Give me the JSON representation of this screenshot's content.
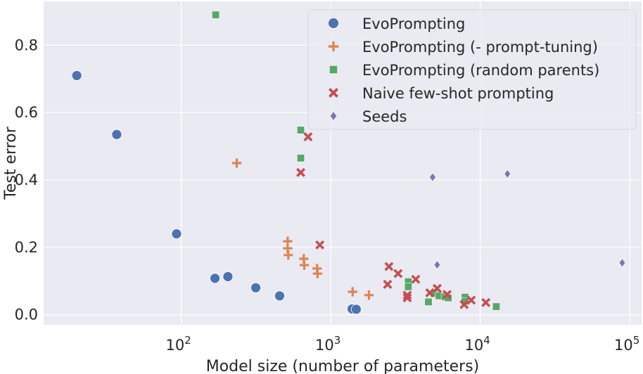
{
  "chart_data": {
    "type": "scatter",
    "xlabel": "Model size (number of parameters)",
    "ylabel": "Test error",
    "xscale": "log",
    "xlim": [
      12,
      120000
    ],
    "ylim": [
      -0.03,
      0.93
    ],
    "x_ticks": [
      {
        "value": 100,
        "base": "10",
        "exp": "2"
      },
      {
        "value": 1000,
        "base": "10",
        "exp": "3"
      },
      {
        "value": 10000,
        "base": "10",
        "exp": "4"
      },
      {
        "value": 100000,
        "base": "10",
        "exp": "5"
      }
    ],
    "y_ticks": [
      {
        "value": 0.0,
        "label": "0.0"
      },
      {
        "value": 0.2,
        "label": "0.2"
      },
      {
        "value": 0.4,
        "label": "0.4"
      },
      {
        "value": 0.6,
        "label": "0.6"
      },
      {
        "value": 0.8,
        "label": "0.8"
      }
    ],
    "grid": true,
    "legend_position": "top-right",
    "background": "#eaeaf2",
    "series": [
      {
        "name": "EvoPrompting",
        "marker": "circle",
        "color": "#4c72b0",
        "points": [
          [
            20,
            0.71
          ],
          [
            37,
            0.535
          ],
          [
            93,
            0.24
          ],
          [
            168,
            0.108
          ],
          [
            205,
            0.113
          ],
          [
            315,
            0.08
          ],
          [
            455,
            0.056
          ],
          [
            1390,
            0.017
          ],
          [
            1480,
            0.016
          ]
        ]
      },
      {
        "name": "EvoPrompting (- prompt-tuning)",
        "marker": "plus",
        "color": "#dd8452",
        "points": [
          [
            235,
            0.45
          ],
          [
            515,
            0.218
          ],
          [
            515,
            0.197
          ],
          [
            520,
            0.177
          ],
          [
            660,
            0.166
          ],
          [
            665,
            0.147
          ],
          [
            810,
            0.137
          ],
          [
            815,
            0.122
          ],
          [
            1400,
            0.068
          ],
          [
            1800,
            0.058
          ]
        ]
      },
      {
        "name": "EvoPrompting (random parents)",
        "marker": "square",
        "color": "#55a868",
        "points": [
          [
            170,
            0.89
          ],
          [
            630,
            0.548
          ],
          [
            630,
            0.465
          ],
          [
            3300,
            0.098
          ],
          [
            3300,
            0.083
          ],
          [
            4500,
            0.038
          ],
          [
            4900,
            0.063
          ],
          [
            5300,
            0.056
          ],
          [
            5800,
            0.053
          ],
          [
            6100,
            0.05
          ],
          [
            7900,
            0.052
          ],
          [
            7900,
            0.04
          ],
          [
            12800,
            0.024
          ]
        ]
      },
      {
        "name": "Naive few-shot prompting",
        "marker": "x",
        "color": "#c44e52",
        "points": [
          [
            705,
            0.528
          ],
          [
            630,
            0.422
          ],
          [
            845,
            0.207
          ],
          [
            2450,
            0.143
          ],
          [
            2820,
            0.122
          ],
          [
            2400,
            0.09
          ],
          [
            3700,
            0.105
          ],
          [
            3250,
            0.058
          ],
          [
            3250,
            0.05
          ],
          [
            4600,
            0.065
          ],
          [
            5150,
            0.078
          ],
          [
            6000,
            0.06
          ],
          [
            7800,
            0.03
          ],
          [
            8700,
            0.043
          ],
          [
            10900,
            0.036
          ]
        ]
      },
      {
        "name": "Seeds",
        "marker": "diamond",
        "color": "#8172b3",
        "points": [
          [
            4800,
            0.408
          ],
          [
            15200,
            0.418
          ],
          [
            5150,
            0.148
          ],
          [
            89000,
            0.154
          ]
        ]
      }
    ]
  }
}
